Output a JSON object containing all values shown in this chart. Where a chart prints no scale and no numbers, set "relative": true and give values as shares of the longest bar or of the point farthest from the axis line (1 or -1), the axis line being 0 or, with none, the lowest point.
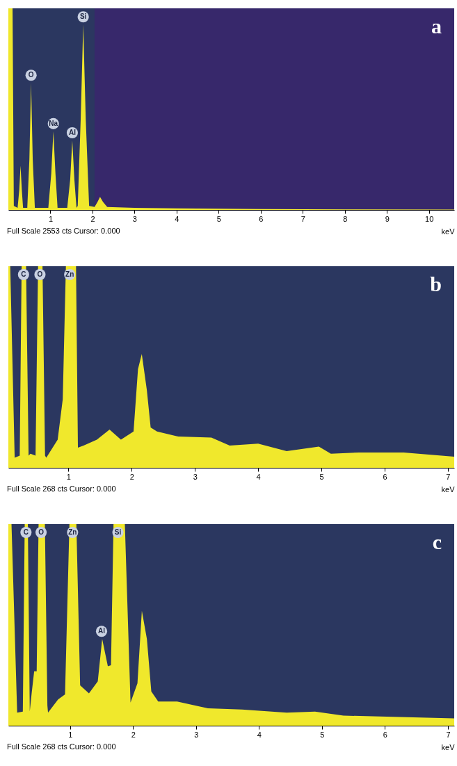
{
  "chart_data": [
    {
      "type": "area",
      "title": "a",
      "xlabel": "keV",
      "relative": true,
      "color": "#f0e82c",
      "xlim": [
        0,
        10.6
      ],
      "xticks": [
        1,
        2,
        3,
        4,
        5,
        6,
        7,
        8,
        9,
        10
      ],
      "x": [
        0,
        0.1,
        0.13,
        0.22,
        0.26,
        0.29,
        0.32,
        0.35,
        0.45,
        0.5,
        0.54,
        0.58,
        0.63,
        0.95,
        1.02,
        1.07,
        1.12,
        1.17,
        1.4,
        1.47,
        1.52,
        1.57,
        1.62,
        1.65,
        1.72,
        1.78,
        1.84,
        1.92,
        2.05,
        2.12,
        2.18,
        2.25,
        2.35,
        3,
        4,
        5,
        6,
        8,
        10.6
      ],
      "values": [
        1,
        1,
        0.02,
        0.01,
        0.1,
        0.22,
        0.1,
        0.01,
        0.01,
        0.25,
        0.63,
        0.25,
        0.01,
        0.01,
        0.18,
        0.39,
        0.18,
        0.01,
        0.01,
        0.15,
        0.345,
        0.15,
        0.01,
        0.02,
        0.45,
        0.92,
        0.45,
        0.02,
        0.015,
        0.04,
        0.065,
        0.04,
        0.015,
        0.01,
        0.008,
        0.006,
        0.004,
        0.003,
        0.002
      ],
      "bands": [
        {
          "axis": "x",
          "from": 2.05,
          "to": 10.6,
          "color": "#37286b"
        }
      ],
      "annotations": [
        "Full Scale 2553 cts Cursor: 0.000",
        {
          "text": "O",
          "x": 0.54,
          "y": 0.63
        },
        {
          "text": "Na",
          "x": 1.07,
          "y": 0.39
        },
        {
          "text": "Al",
          "x": 1.52,
          "y": 0.345
        },
        {
          "text": "Si",
          "x": 1.78,
          "y": 0.92
        }
      ]
    },
    {
      "type": "area",
      "title": "b",
      "xlabel": "keV",
      "relative": true,
      "color": "#f0e82c",
      "xlim": [
        0.05,
        7.1
      ],
      "xticks": [
        1,
        2,
        3,
        4,
        5,
        6,
        7
      ],
      "x": [
        0.05,
        0.08,
        0.15,
        0.23,
        0.26,
        0.29,
        0.33,
        0.37,
        0.4,
        0.48,
        0.52,
        0.55,
        0.59,
        0.63,
        0.65,
        0.83,
        0.91,
        0.96,
        1.02,
        1.12,
        1.15,
        1.24,
        1.45,
        1.65,
        1.83,
        2.03,
        2.1,
        2.16,
        2.24,
        2.3,
        2.4,
        2.74,
        3.26,
        3.55,
        4.0,
        4.45,
        4.96,
        5.15,
        5.6,
        6.3,
        7.1
      ],
      "values": [
        1,
        1,
        0.05,
        0.06,
        1,
        1,
        1,
        0.06,
        0.07,
        0.06,
        1,
        1,
        1,
        0.06,
        0.05,
        0.14,
        0.34,
        1,
        1,
        1,
        0.1,
        0.11,
        0.14,
        0.19,
        0.14,
        0.18,
        0.49,
        0.565,
        0.385,
        0.2,
        0.18,
        0.155,
        0.15,
        0.11,
        0.12,
        0.083,
        0.105,
        0.07,
        0.076,
        0.076,
        0.055
      ],
      "annotations": [
        "Full Scale 268 cts Cursor: 0.000",
        {
          "text": "C",
          "x": 0.29,
          "y": 1
        },
        {
          "text": "O",
          "x": 0.55,
          "y": 1
        },
        {
          "text": "Zn",
          "x": 1.02,
          "y": 1
        }
      ]
    },
    {
      "type": "area",
      "title": "c",
      "xlabel": "keV",
      "relative": true,
      "color": "#f0e82c",
      "xlim": [
        0.02,
        7.1
      ],
      "xticks": [
        1,
        2,
        3,
        4,
        5,
        6,
        7
      ],
      "x": [
        0.02,
        0.07,
        0.16,
        0.25,
        0.28,
        0.3,
        0.33,
        0.36,
        0.39,
        0.43,
        0.47,
        0.5,
        0.54,
        0.6,
        0.64,
        0.65,
        0.81,
        0.92,
        0.99,
        1.04,
        1.1,
        1.16,
        1.3,
        1.44,
        1.51,
        1.6,
        1.65,
        1.69,
        1.76,
        1.87,
        1.96,
        2.07,
        2.14,
        2.22,
        2.29,
        2.4,
        2.7,
        3.19,
        3.73,
        4.44,
        4.89,
        5.34,
        6.24,
        7.1
      ],
      "values": [
        1,
        1,
        0.065,
        0.07,
        1,
        1,
        1,
        0.07,
        0.16,
        0.27,
        0.27,
        1,
        1,
        1,
        0.1,
        0.065,
        0.13,
        0.155,
        1,
        1,
        1,
        0.2,
        0.16,
        0.22,
        0.43,
        0.295,
        0.3,
        1,
        1,
        1,
        0.115,
        0.21,
        0.57,
        0.43,
        0.17,
        0.12,
        0.12,
        0.086,
        0.08,
        0.065,
        0.07,
        0.05,
        0.043,
        0.036
      ],
      "annotations": [
        "Full Scale 268 cts Cursor: 0.000",
        {
          "text": "C",
          "x": 0.3,
          "y": 1
        },
        {
          "text": "O",
          "x": 0.54,
          "y": 1
        },
        {
          "text": "Zn",
          "x": 1.04,
          "y": 1
        },
        {
          "text": "Al",
          "x": 1.5,
          "y": 0.43
        },
        {
          "text": "Si",
          "x": 1.76,
          "y": 1
        }
      ]
    }
  ]
}
